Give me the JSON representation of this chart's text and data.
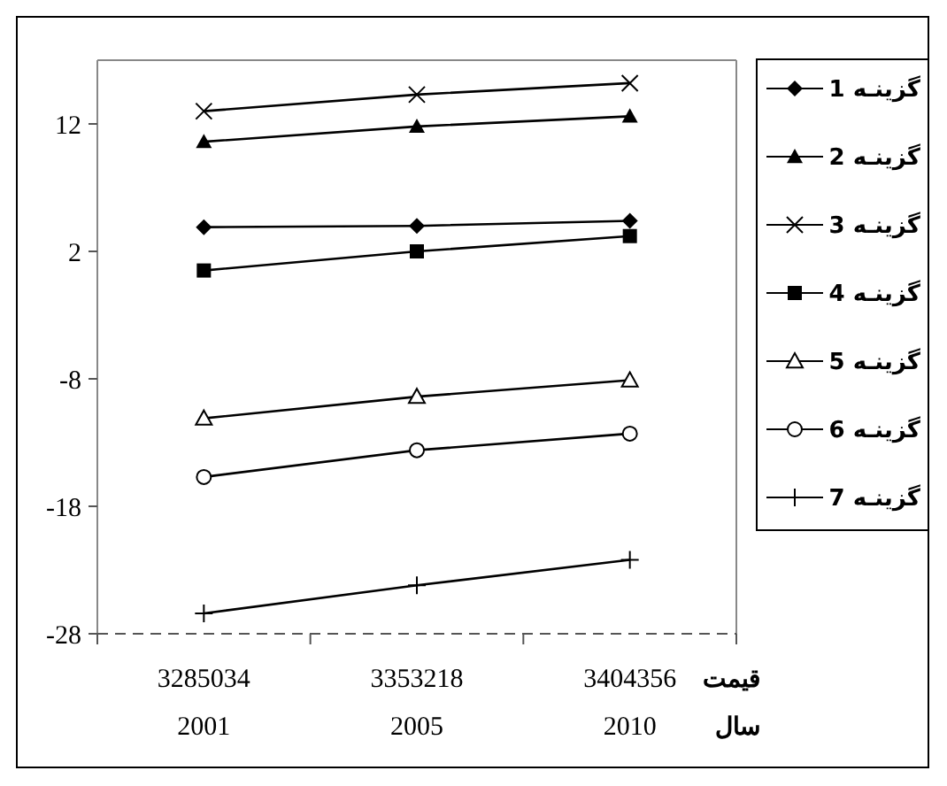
{
  "chart_data": {
    "type": "line",
    "categories": [
      "3285034\n2001",
      "3353218\n2005",
      "3404356\n2010"
    ],
    "xlabel": "قیمت\nسال",
    "ylim": [
      -28,
      17
    ],
    "yticks": [
      -28,
      -18,
      -8,
      2,
      12
    ],
    "grid": false,
    "legend": "right",
    "series": [
      {
        "name": "گزینـه 1",
        "color": "#000000",
        "marker": "diamond",
        "values": [
          3.9,
          4.0,
          4.4
        ]
      },
      {
        "name": "گزینـه 2",
        "color": "#000000",
        "marker": "triangle",
        "values": [
          10.6,
          11.8,
          12.6
        ]
      },
      {
        "name": "گزینـه 3",
        "color": "#000000",
        "marker": "cross",
        "values": [
          13.0,
          14.3,
          15.2
        ]
      },
      {
        "name": "گزینـه 4",
        "color": "#000000",
        "marker": "square",
        "values": [
          0.5,
          2.0,
          3.2
        ]
      },
      {
        "name": "گزینـه 5",
        "color": "#000000",
        "marker": "triangle-open",
        "values": [
          -11.1,
          -9.4,
          -8.1
        ]
      },
      {
        "name": "گزینـه 6",
        "color": "#000000",
        "marker": "circle-open",
        "values": [
          -15.7,
          -13.6,
          -12.3
        ]
      },
      {
        "name": "گزینـه 7",
        "color": "#000000",
        "marker": "plus",
        "values": [
          -26.4,
          -24.2,
          -22.2
        ]
      }
    ]
  }
}
